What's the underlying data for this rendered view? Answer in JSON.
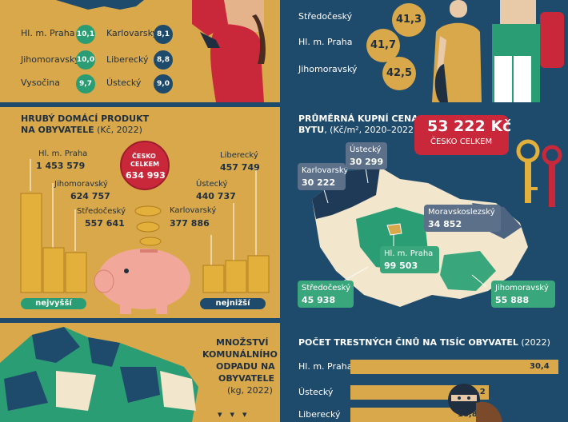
{
  "top_left": {
    "rows": [
      {
        "left_name": "Hl. m. Praha",
        "left_value": "10,1",
        "right_name": "Karlovarský",
        "right_value": "8,1"
      },
      {
        "left_name": "Jihomoravský",
        "left_value": "10,0",
        "right_name": "Liberecký",
        "right_value": "8,8"
      },
      {
        "left_name": "Vysočina",
        "left_value": "9,7",
        "right_name": "Ústecký",
        "right_value": "9,0"
      }
    ]
  },
  "top_right": {
    "rows": [
      {
        "name": "Středočeský",
        "value": "41,3"
      },
      {
        "name": "Hl. m. Praha",
        "value": "41,7"
      },
      {
        "name": "Jihomoravský",
        "value": "42,5"
      }
    ]
  },
  "gdp": {
    "title_line1": "HRUBÝ DOMÁCÍ PRODUKT",
    "title_line2_bold": "NA OBYVATELE",
    "title_line2_rest": " (Kč, 2022)",
    "czech_total_label_1": "ČESKO",
    "czech_total_label_2": "CELKEM",
    "czech_total_value": "634 993",
    "highest_label": "nejvyšší",
    "lowest_label": "nejnižší",
    "items": [
      {
        "name": "Hl. m. Praha",
        "value": "1 453 579"
      },
      {
        "name": "Jihomoravský",
        "value": "624 757"
      },
      {
        "name": "Středočeský",
        "value": "557 641"
      },
      {
        "name": "Liberecký",
        "value": "457 749"
      },
      {
        "name": "Ústecký",
        "value": "440 737"
      },
      {
        "name": "Karlovarský",
        "value": "377 886"
      }
    ]
  },
  "flat_price": {
    "title_line1": "PRŮMĚRNÁ KUPNÍ CENA",
    "title_line2_bold": "BYTU",
    "title_line2_rest": ", (Kč/m², 2020–2022)",
    "czech_total_value": "53 222 Kč",
    "czech_total_label": "ČESKO CELKEM",
    "regions": [
      {
        "name": "Karlovarský",
        "value": "30 222"
      },
      {
        "name": "Ústecký",
        "value": "30 299"
      },
      {
        "name": "Moravskoslezský",
        "value": "34 852"
      },
      {
        "name": "Hl. m. Praha",
        "value": "99 503"
      },
      {
        "name": "Středočeský",
        "value": "45 938"
      },
      {
        "name": "Jihomoravský",
        "value": "55 888"
      }
    ]
  },
  "waste": {
    "title_line1": "MNOŽSTVÍ",
    "title_line2": "KOMUNÁLNÍHO",
    "title_line3": "ODPADU NA",
    "title_line4": "OBYVATELE",
    "title_line5": "(kg, 2022)"
  },
  "crime": {
    "title_bold": "POČET TRESTNÝCH ČINŮ NA TISÍC OBYVATEL",
    "title_rest": " (2022)",
    "rows": [
      {
        "name": "Hl. m. Praha",
        "value": "30,4",
        "fraction": 1.0
      },
      {
        "name": "Ústecký",
        "value": "20,2",
        "fraction": 0.664
      },
      {
        "name": "Liberecký",
        "value": "18,8",
        "fraction": 0.618
      }
    ]
  },
  "colors": {
    "navy": "#1e4a6b",
    "gold": "#d8a84a",
    "green": "#2a9d74",
    "teal_region": "#3aa67b",
    "gray_label": "#5c7189",
    "red": "#c8283a"
  }
}
